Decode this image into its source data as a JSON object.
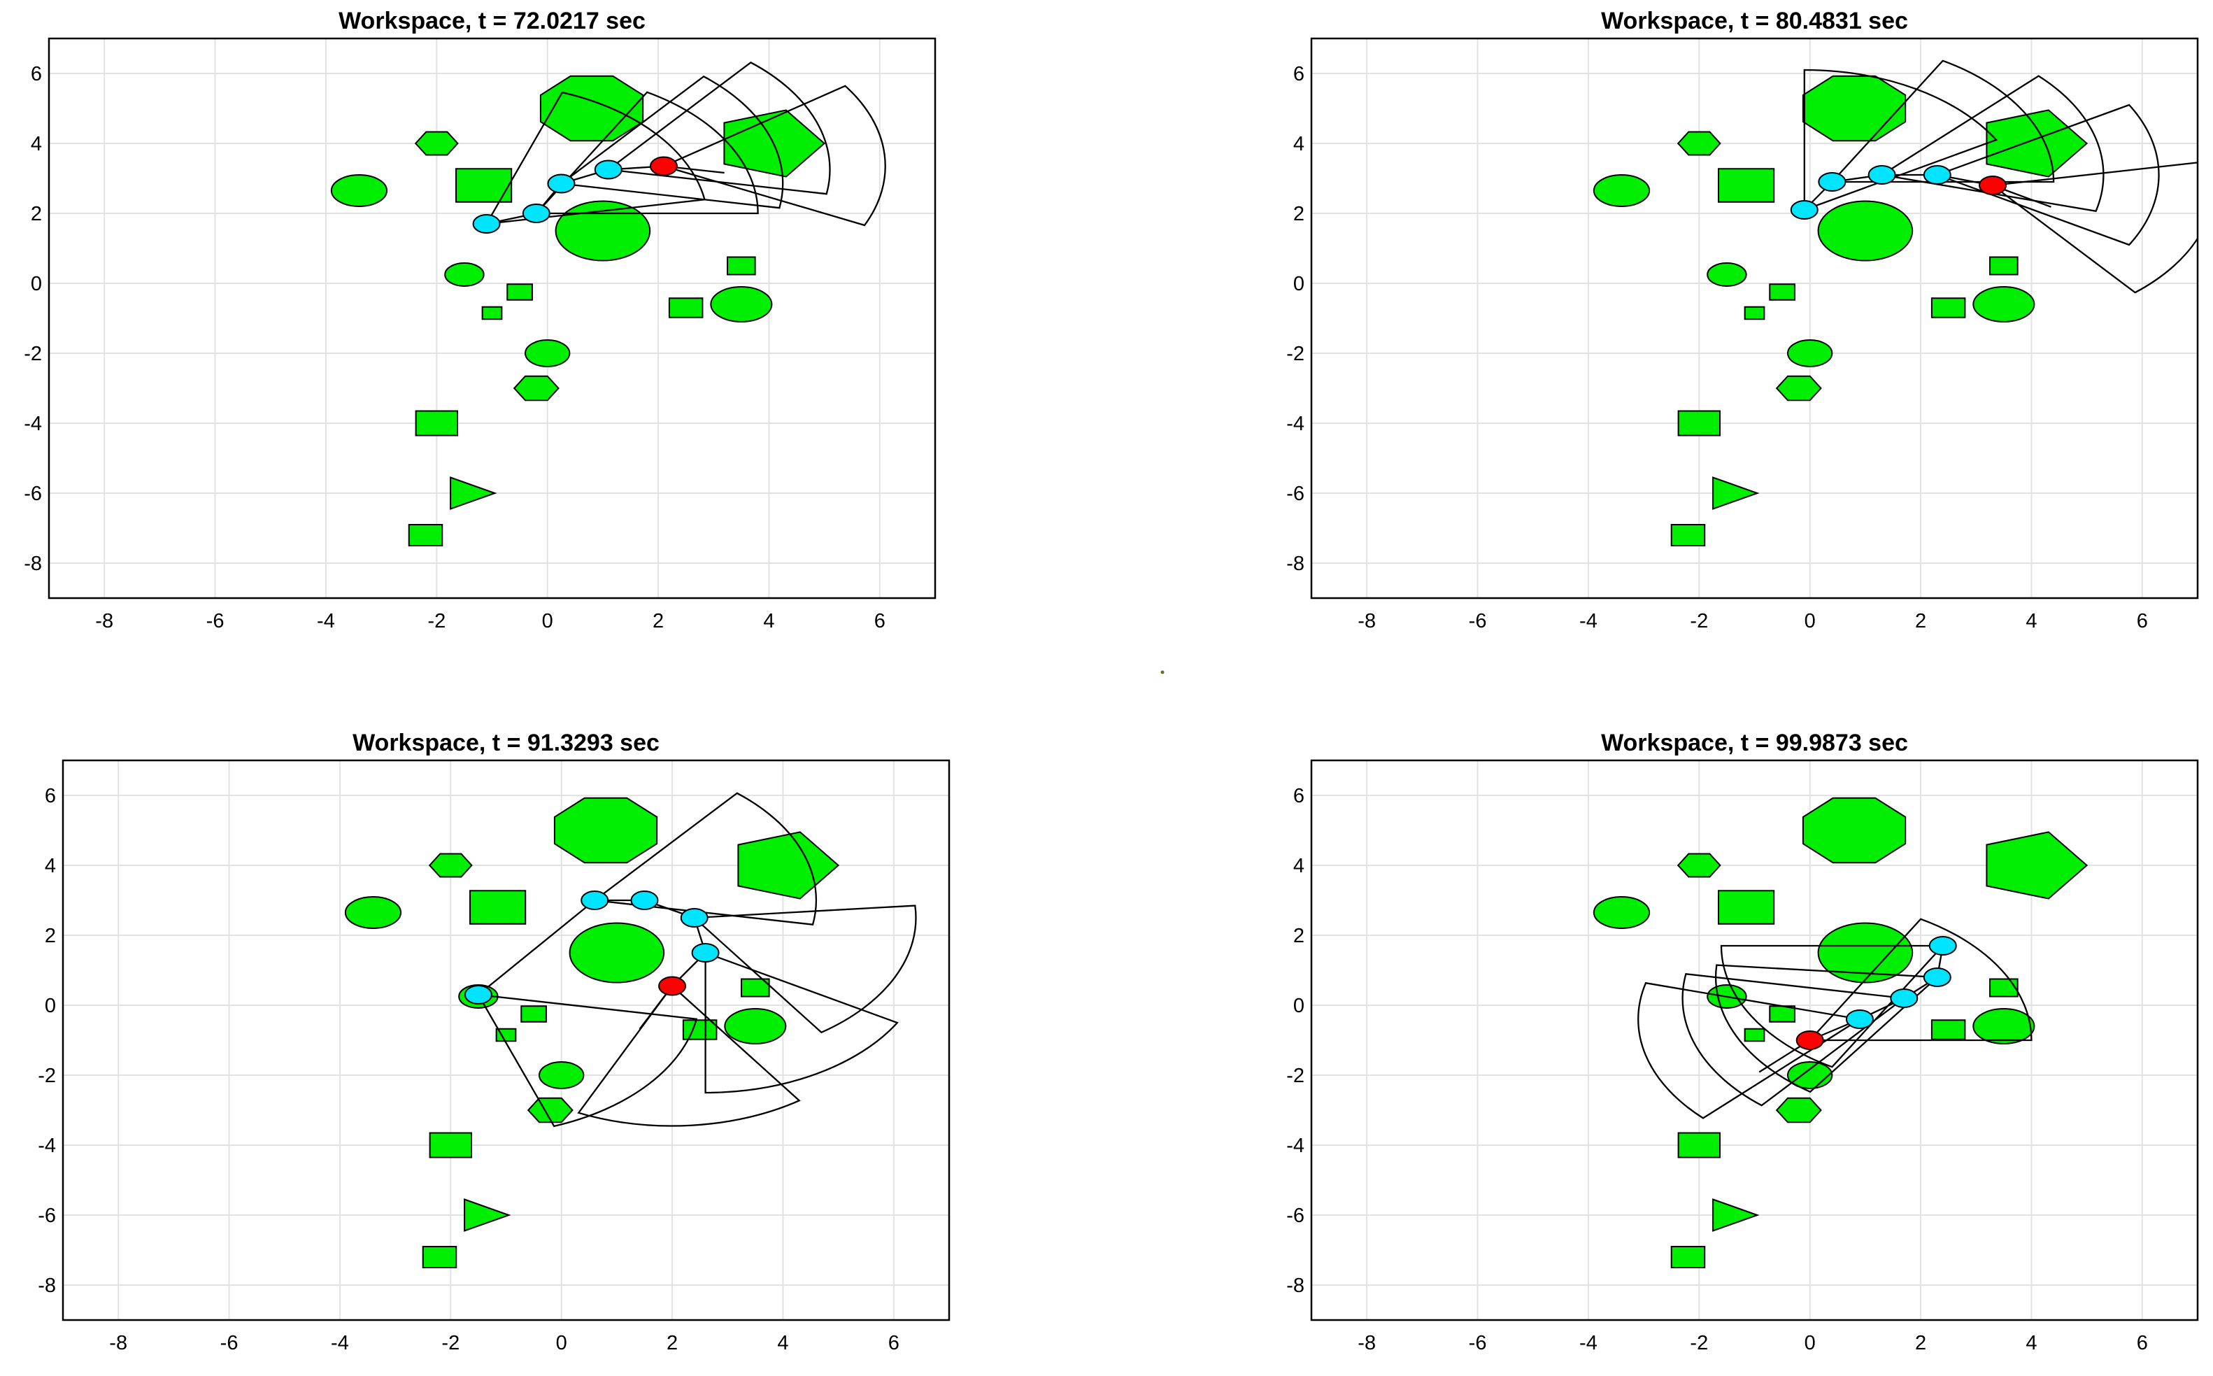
{
  "figure": {
    "panel_title_prefix": "Workspace, t = ",
    "panel_title_suffix": " sec",
    "axes": {
      "xlim": [
        -9,
        7
      ],
      "ylim": [
        -9,
        7
      ],
      "xticks": [
        -8,
        -6,
        -4,
        -2,
        0,
        2,
        4,
        6
      ],
      "yticks": [
        6,
        4,
        2,
        0,
        -2,
        -4,
        -6,
        -8
      ],
      "grid": true
    },
    "colors": {
      "obstacle": "#00ee00",
      "joint": "#00e5ff",
      "end_effector": "#ff0000",
      "outline": "#000000",
      "grid": "#e2e2e2"
    },
    "obstacles": [
      {
        "shape": "polygon",
        "sides": 8,
        "cx": 0.8,
        "cy": 5.0,
        "r": 1.0,
        "rot": 22.5
      },
      {
        "shape": "polygon",
        "sides": 5,
        "cx": 4.0,
        "cy": 4.0,
        "r": 1.0,
        "rot": 0
      },
      {
        "shape": "polygon",
        "sides": 6,
        "cx": -2.0,
        "cy": 4.0,
        "r": 0.38,
        "rot": 0
      },
      {
        "shape": "rect",
        "cx": -1.15,
        "cy": 2.8,
        "w": 1.0,
        "h": 0.95
      },
      {
        "shape": "ellipse",
        "cx": -3.4,
        "cy": 2.65,
        "rx": 0.5,
        "ry": 0.45
      },
      {
        "shape": "ellipse",
        "cx": 1.0,
        "cy": 1.5,
        "rx": 0.85,
        "ry": 0.85
      },
      {
        "shape": "ellipse",
        "cx": -1.5,
        "cy": 0.25,
        "rx": 0.35,
        "ry": 0.33
      },
      {
        "shape": "rect",
        "cx": -0.5,
        "cy": -0.25,
        "w": 0.45,
        "h": 0.45
      },
      {
        "shape": "rect",
        "cx": -1.0,
        "cy": -0.85,
        "w": 0.35,
        "h": 0.35
      },
      {
        "shape": "rect",
        "cx": 3.5,
        "cy": 0.5,
        "w": 0.5,
        "h": 0.5
      },
      {
        "shape": "rect",
        "cx": 2.5,
        "cy": -0.7,
        "w": 0.6,
        "h": 0.55
      },
      {
        "shape": "ellipse",
        "cx": 3.5,
        "cy": -0.6,
        "rx": 0.55,
        "ry": 0.5
      },
      {
        "shape": "ellipse",
        "cx": 0.0,
        "cy": -2.0,
        "rx": 0.4,
        "ry": 0.38
      },
      {
        "shape": "polygon",
        "sides": 6,
        "cx": -0.2,
        "cy": -3.0,
        "r": 0.4,
        "rot": 0
      },
      {
        "shape": "rect",
        "cx": -2.0,
        "cy": -4.0,
        "w": 0.75,
        "h": 0.7
      },
      {
        "shape": "triangle",
        "points": [
          [
            -1.75,
            -5.55
          ],
          [
            -0.95,
            -6.0
          ],
          [
            -1.75,
            -6.45
          ]
        ]
      },
      {
        "shape": "rect",
        "cx": -2.2,
        "cy": -7.2,
        "w": 0.6,
        "h": 0.6
      }
    ]
  },
  "panels": [
    {
      "time": "72.0217",
      "joints": [
        [
          -1.1,
          1.7
        ],
        [
          -0.2,
          2.0
        ],
        [
          0.25,
          2.85
        ],
        [
          1.1,
          3.25
        ],
        [
          2.1,
          3.35
        ]
      ],
      "fovs": [
        {
          "apex": [
            -1.1,
            1.7
          ],
          "dir": 40,
          "span": 60,
          "r": 4.0
        },
        {
          "apex": [
            -0.2,
            2.0
          ],
          "dir": 30,
          "span": 60,
          "r": 4.0
        },
        {
          "apex": [
            0.25,
            2.85
          ],
          "dir": 20,
          "span": 60,
          "r": 4.0
        },
        {
          "apex": [
            1.1,
            3.25
          ],
          "dir": 20,
          "span": 60,
          "r": 4.0
        },
        {
          "apex": [
            2.1,
            3.35
          ],
          "dir": 5,
          "span": 60,
          "r": 4.0
        }
      ]
    },
    {
      "time": "80.4831",
      "joints": [
        [
          -0.1,
          2.1
        ],
        [
          0.4,
          2.9
        ],
        [
          1.3,
          3.1
        ],
        [
          2.3,
          3.1
        ],
        [
          3.3,
          2.8
        ]
      ],
      "fovs": [
        {
          "apex": [
            -0.1,
            2.1
          ],
          "dir": 60,
          "span": 60,
          "r": 4.0
        },
        {
          "apex": [
            0.4,
            2.9
          ],
          "dir": 30,
          "span": 60,
          "r": 4.0
        },
        {
          "apex": [
            1.3,
            3.1
          ],
          "dir": 15,
          "span": 60,
          "r": 4.0
        },
        {
          "apex": [
            2.3,
            3.1
          ],
          "dir": 0,
          "span": 60,
          "r": 4.0
        },
        {
          "apex": [
            3.3,
            2.8
          ],
          "dir": -20,
          "span": 60,
          "r": 4.0
        }
      ]
    },
    {
      "time": "91.3293",
      "joints": [
        [
          -1.5,
          0.3
        ],
        [
          0.6,
          3.0
        ],
        [
          1.5,
          3.0
        ],
        [
          2.4,
          2.5
        ],
        [
          2.6,
          1.5
        ],
        [
          2.0,
          0.55
        ]
      ],
      "fovs": [
        {
          "apex": [
            -1.5,
            0.3
          ],
          "dir": -40,
          "span": 60,
          "r": 4.0
        },
        {
          "apex": [
            0.6,
            3.0
          ],
          "dir": 20,
          "span": 60,
          "r": 4.0
        },
        {
          "apex": [
            2.4,
            2.5
          ],
          "dir": -25,
          "span": 60,
          "r": 4.0
        },
        {
          "apex": [
            2.6,
            1.5
          ],
          "dir": -60,
          "span": 60,
          "r": 4.0
        },
        {
          "apex": [
            2.0,
            0.55
          ],
          "dir": -85,
          "span": 60,
          "r": 4.0
        }
      ]
    },
    {
      "time": "99.9873",
      "joints": [
        [
          2.4,
          1.7
        ],
        [
          2.3,
          0.8
        ],
        [
          1.7,
          0.2
        ],
        [
          0.9,
          -0.4
        ],
        [
          0.0,
          -1.0
        ]
      ],
      "fovs": [
        {
          "apex": [
            2.4,
            1.7
          ],
          "dir": -150,
          "span": 60,
          "r": 4.0
        },
        {
          "apex": [
            2.3,
            0.8
          ],
          "dir": -155,
          "span": 60,
          "r": 4.0
        },
        {
          "apex": [
            1.7,
            0.2
          ],
          "dir": -160,
          "span": 60,
          "r": 4.0
        },
        {
          "apex": [
            0.9,
            -0.4
          ],
          "dir": -165,
          "span": 60,
          "r": 4.0
        },
        {
          "apex": [
            0.0,
            -1.0
          ],
          "dir": 30,
          "span": 60,
          "r": 4.0
        }
      ]
    }
  ]
}
